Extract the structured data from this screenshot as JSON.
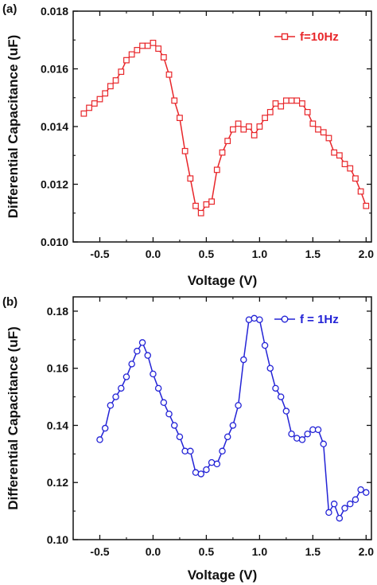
{
  "chart_data": [
    {
      "panel_label": "(a)",
      "type": "line",
      "xlabel": "Voltage (V)",
      "ylabel": "Differential Capacitance (uF)",
      "xlim": [
        -0.75,
        2.05
      ],
      "ylim": [
        0.01,
        0.018
      ],
      "xticks": [
        -0.5,
        0.0,
        0.5,
        1.0,
        1.5,
        2.0
      ],
      "xtick_labels": [
        "-0.5",
        "0.0",
        "0.5",
        "1.0",
        "1.5",
        "2.0"
      ],
      "yticks": [
        0.01,
        0.012,
        0.014,
        0.016,
        0.018
      ],
      "ytick_labels": [
        "0.010",
        "0.012",
        "0.014",
        "0.016",
        "0.018"
      ],
      "legend_placement": "top-right",
      "color": "#e8262a",
      "marker": "square",
      "series": [
        {
          "name": "f=10Hz",
          "x": [
            -0.65,
            -0.6,
            -0.55,
            -0.5,
            -0.45,
            -0.4,
            -0.35,
            -0.3,
            -0.25,
            -0.2,
            -0.15,
            -0.1,
            -0.05,
            0.0,
            0.05,
            0.1,
            0.15,
            0.2,
            0.25,
            0.3,
            0.35,
            0.4,
            0.45,
            0.5,
            0.55,
            0.6,
            0.65,
            0.7,
            0.75,
            0.8,
            0.85,
            0.9,
            0.95,
            1.0,
            1.05,
            1.1,
            1.15,
            1.2,
            1.25,
            1.3,
            1.35,
            1.4,
            1.45,
            1.5,
            1.55,
            1.6,
            1.65,
            1.7,
            1.75,
            1.8,
            1.85,
            1.9,
            1.95,
            2.0
          ],
          "y": [
            0.01445,
            0.01465,
            0.0148,
            0.01495,
            0.01515,
            0.0154,
            0.0156,
            0.0159,
            0.0163,
            0.0165,
            0.01665,
            0.0168,
            0.0168,
            0.0169,
            0.0167,
            0.0164,
            0.0158,
            0.0149,
            0.0143,
            0.01315,
            0.0122,
            0.01125,
            0.011,
            0.0113,
            0.0114,
            0.0125,
            0.0131,
            0.0135,
            0.0139,
            0.0141,
            0.0139,
            0.014,
            0.0137,
            0.014,
            0.0143,
            0.0145,
            0.0148,
            0.0147,
            0.0149,
            0.0149,
            0.0149,
            0.0148,
            0.0145,
            0.0141,
            0.0139,
            0.0138,
            0.0136,
            0.0131,
            0.013,
            0.0127,
            0.01255,
            0.0122,
            0.01175,
            0.01125
          ]
        }
      ]
    },
    {
      "panel_label": "(b)",
      "type": "line",
      "xlabel": "Voltage (V)",
      "ylabel": "Differential Capacitance (uF)",
      "xlim": [
        -0.75,
        2.05
      ],
      "ylim": [
        0.1,
        0.185
      ],
      "xticks": [
        -0.5,
        0.0,
        0.5,
        1.0,
        1.5,
        2.0
      ],
      "xtick_labels": [
        "-0.5",
        "0.0",
        "0.5",
        "1.0",
        "1.5",
        "2.0"
      ],
      "yticks": [
        0.1,
        0.12,
        0.14,
        0.16,
        0.18
      ],
      "ytick_labels": [
        "0.10",
        "0.12",
        "0.14",
        "0.16",
        "0.18"
      ],
      "legend_placement": "top-right",
      "color": "#2323d6",
      "marker": "circle",
      "series": [
        {
          "name": "f = 1Hz",
          "x": [
            -0.5,
            -0.45,
            -0.4,
            -0.35,
            -0.3,
            -0.25,
            -0.2,
            -0.15,
            -0.1,
            -0.05,
            0.0,
            0.05,
            0.1,
            0.15,
            0.2,
            0.25,
            0.3,
            0.35,
            0.4,
            0.45,
            0.5,
            0.55,
            0.6,
            0.65,
            0.7,
            0.75,
            0.8,
            0.85,
            0.9,
            0.95,
            1.0,
            1.05,
            1.1,
            1.15,
            1.2,
            1.25,
            1.3,
            1.35,
            1.4,
            1.45,
            1.5,
            1.55,
            1.6,
            1.65,
            1.7,
            1.75,
            1.8,
            1.85,
            1.9,
            1.95,
            2.0
          ],
          "y": [
            0.135,
            0.139,
            0.147,
            0.15,
            0.153,
            0.157,
            0.1615,
            0.166,
            0.169,
            0.1645,
            0.158,
            0.153,
            0.148,
            0.144,
            0.14,
            0.136,
            0.131,
            0.131,
            0.1235,
            0.123,
            0.1245,
            0.127,
            0.1265,
            0.131,
            0.136,
            0.14,
            0.147,
            0.163,
            0.177,
            0.1775,
            0.177,
            0.168,
            0.16,
            0.153,
            0.15,
            0.145,
            0.137,
            0.1355,
            0.135,
            0.137,
            0.1385,
            0.1385,
            0.1335,
            0.1095,
            0.1125,
            0.1075,
            0.111,
            0.1125,
            0.114,
            0.1175,
            0.1165
          ]
        }
      ]
    }
  ]
}
